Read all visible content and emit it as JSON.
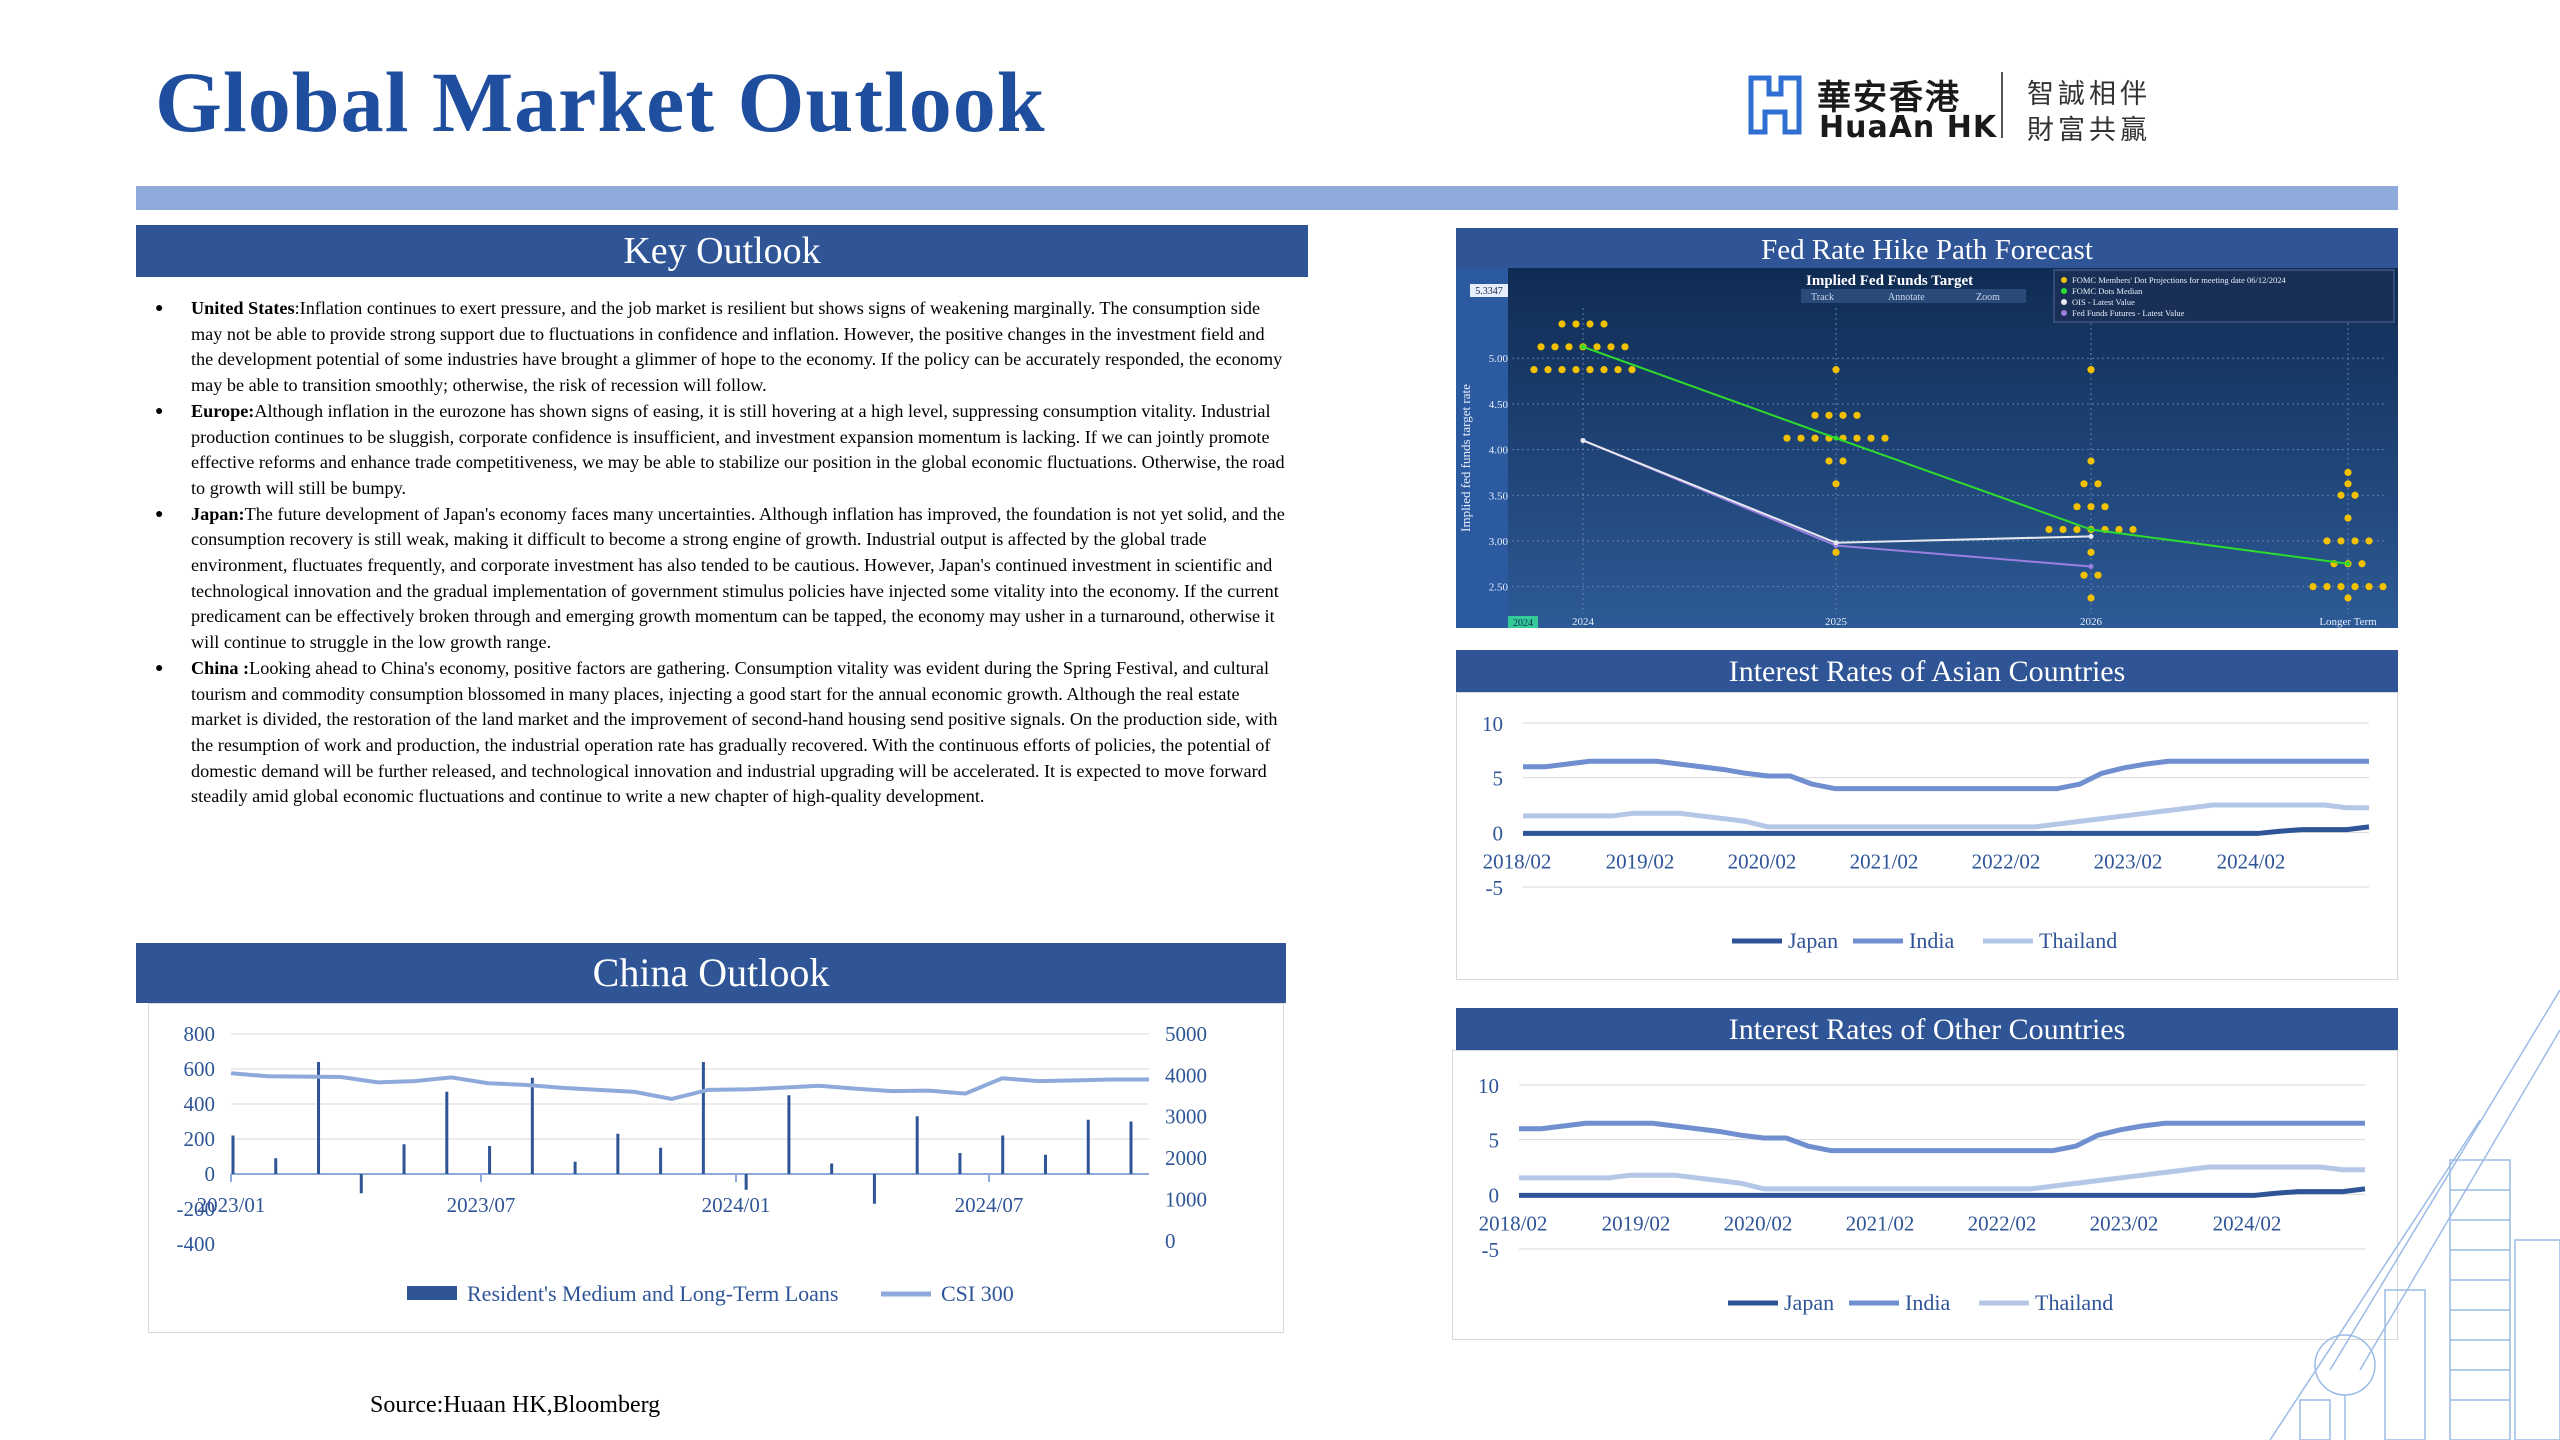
{
  "page": {
    "title": "Global Market Outlook",
    "logo": {
      "cn": "華安香港",
      "en": "HuaAn HK",
      "slogan1": "智誠相伴",
      "slogan2": "財富共贏"
    },
    "source": "Source:Huaan HK,Bloomberg"
  },
  "key_outlook": {
    "header": "Key Outlook",
    "items": [
      {
        "label": "United States",
        "sep": ":",
        "text": "Inflation continues to exert pressure, and the job market is resilient but shows signs of weakening marginally. The consumption side may not be able to provide strong support due to fluctuations in confidence and inflation. However, the positive changes in the investment field and the development potential of some industries have brought a glimmer of hope to the economy. If the policy can be accurately responded, the economy may be able to transition smoothly; otherwise, the risk of recession will follow."
      },
      {
        "label": "Europe:",
        "sep": "",
        "text": "Although inflation in the eurozone has shown signs of easing, it is still hovering at a high level, suppressing consumption vitality. Industrial production continues to be sluggish, corporate confidence is insufficient, and investment expansion momentum is lacking. If we can jointly promote effective reforms and enhance trade competitiveness, we may be able to stabilize our position in the global economic fluctuations. Otherwise, the road to growth will still be bumpy."
      },
      {
        "label": "Japan:",
        "sep": "",
        "text": "The future development of Japan's economy faces many uncertainties. Although inflation has improved, the foundation is not yet solid, and the consumption recovery is still weak, making it difficult to become a strong engine of growth. Industrial output is affected by the global trade environment, fluctuates frequently, and corporate investment has also tended to be cautious. However, Japan's continued investment in scientific and technological innovation and the gradual implementation of government stimulus policies have injected some vitality into the economy. If the current predicament can be effectively broken through and emerging growth momentum can be tapped, the economy may usher in a turnaround, otherwise it will continue to struggle in the low growth range."
      },
      {
        "label": "China :",
        "sep": "",
        "text": "Looking ahead to China's economy, positive factors are gathering. Consumption vitality was evident during the Spring Festival, and cultural tourism and commodity consumption blossomed in many places, injecting a good start for the annual economic growth. Although the real estate market is divided, the restoration of the land market and the improvement of second-hand housing send positive signals. On the production side, with the resumption of work and production, the industrial operation rate has gradually recovered. With the continuous efforts of policies, the potential of domestic demand will be further released, and technological innovation and industrial upgrading will be accelerated. It is expected to move forward steadily amid global economic fluctuations and continue to write a new chapter of high-quality development."
      }
    ]
  },
  "headers": {
    "china": "China Outlook",
    "fed": "Fed Rate Hike Path Forecast",
    "asian": "Interest Rates of Asian Countries",
    "other": "Interest Rates of Other Countries"
  },
  "colors": {
    "brand": "#2f5597",
    "accent_bar": "#8eaadb",
    "title": "#1f4e9f",
    "japan": "#2f5597",
    "india": "#6f8fd0",
    "thailand": "#b4c7e7",
    "csi": "#8eaadb"
  },
  "chart_data": [
    {
      "id": "china",
      "type": "bar",
      "x_ticks": [
        "2023/01",
        "2023/07",
        "2024/01",
        "2024/07"
      ],
      "y_ticks_left": [
        "800",
        "600",
        "400",
        "200",
        "0",
        "-200",
        "-400"
      ],
      "y_ticks_right": [
        "5000",
        "4000",
        "3000",
        "2000",
        "1000",
        "0"
      ],
      "ylim_left": [
        -400,
        800
      ],
      "ylim_right": [
        0,
        5000
      ],
      "series": [
        {
          "name": "Resident's Medium and Long-Term Loans",
          "kind": "bar",
          "axis": "left",
          "values": [
            220,
            90,
            640,
            -110,
            170,
            470,
            160,
            550,
            70,
            230,
            150,
            640,
            -90,
            450,
            60,
            -170,
            330,
            120,
            220,
            110,
            310,
            300
          ]
        },
        {
          "name": "CSI 300",
          "kind": "line",
          "axis": "right",
          "values": [
            4050,
            3980,
            3970,
            3960,
            3830,
            3860,
            3950,
            3810,
            3770,
            3700,
            3650,
            3600,
            3430,
            3650,
            3660,
            3700,
            3750,
            3680,
            3620,
            3630,
            3560,
            3930,
            3860,
            3880,
            3900,
            3900
          ]
        }
      ]
    },
    {
      "id": "fed",
      "type": "scatter",
      "title": "Implied Fed Funds Target",
      "legend": [
        "FOMC Members' Dot Projections for meeting date 06/12/2024",
        "FOMC Dots Median",
        "OIS - Latest Value",
        "Fed Funds Futures - Latest Value"
      ],
      "toolbar": [
        "Track",
        "Annotate",
        "Zoom"
      ],
      "ylabel": "Implied fed funds target rate",
      "x_ticks": [
        "2024",
        "2025",
        "2026",
        "Longer Term"
      ],
      "y_ticks": [
        "5.00",
        "4.50",
        "4.00",
        "3.50",
        "3.00",
        "2.50"
      ],
      "ylim": [
        2.2,
        5.55
      ],
      "badge_top": "5.3347",
      "badge_bottom": "2024",
      "dots": [
        {
          "x": "2024",
          "levels": [
            [
              5.375,
              4
            ],
            [
              5.125,
              7
            ],
            [
              4.875,
              8
            ]
          ]
        },
        {
          "x": "2025",
          "levels": [
            [
              4.875,
              1
            ],
            [
              4.375,
              4
            ],
            [
              4.125,
              8
            ],
            [
              3.875,
              2
            ],
            [
              3.625,
              1
            ],
            [
              2.875,
              1
            ]
          ]
        },
        {
          "x": "2026",
          "levels": [
            [
              4.875,
              1
            ],
            [
              3.875,
              1
            ],
            [
              3.625,
              2
            ],
            [
              3.375,
              3
            ],
            [
              3.125,
              7
            ],
            [
              2.875,
              1
            ],
            [
              2.625,
              2
            ],
            [
              2.375,
              1
            ]
          ]
        },
        {
          "x": "Longer Term",
          "levels": [
            [
              3.75,
              1
            ],
            [
              3.625,
              1
            ],
            [
              3.5,
              2
            ],
            [
              3.25,
              1
            ],
            [
              3.0,
              4
            ],
            [
              2.75,
              3
            ],
            [
              2.5,
              6
            ],
            [
              2.375,
              1
            ]
          ]
        }
      ],
      "series": [
        {
          "name": "FOMC Dots Median",
          "values": [
            5.125,
            4.125,
            3.125,
            2.75
          ]
        },
        {
          "name": "OIS - Latest Value",
          "values": [
            4.1,
            2.98,
            3.05
          ]
        },
        {
          "name": "Fed Funds Futures - Latest Value",
          "values": [
            4.1,
            2.95,
            2.72
          ]
        }
      ]
    },
    {
      "id": "asian",
      "type": "line",
      "x_ticks": [
        "2018/02",
        "2019/02",
        "2020/02",
        "2021/02",
        "2022/02",
        "2023/02",
        "2024/02"
      ],
      "y_ticks": [
        "10",
        "5",
        "0",
        "-5"
      ],
      "ylim": [
        -5,
        10
      ],
      "series": [
        {
          "name": "Japan",
          "values": [
            -0.1,
            -0.1,
            -0.1,
            -0.1,
            -0.1,
            -0.1,
            -0.1,
            -0.1,
            -0.1,
            -0.1,
            -0.1,
            -0.1,
            -0.1,
            -0.1,
            -0.1,
            -0.1,
            -0.1,
            -0.1,
            -0.1,
            -0.1,
            -0.1,
            -0.1,
            -0.1,
            -0.1,
            -0.1,
            -0.1,
            -0.1,
            -0.1,
            -0.1,
            -0.1,
            -0.1,
            -0.1,
            -0.1,
            -0.1,
            0.1,
            0.25,
            0.25,
            0.25,
            0.5
          ]
        },
        {
          "name": "India",
          "values": [
            6.0,
            6.0,
            6.25,
            6.5,
            6.5,
            6.5,
            6.5,
            6.25,
            6.0,
            5.75,
            5.4,
            5.15,
            5.15,
            4.4,
            4.0,
            4.0,
            4.0,
            4.0,
            4.0,
            4.0,
            4.0,
            4.0,
            4.0,
            4.0,
            4.0,
            4.4,
            5.4,
            5.9,
            6.25,
            6.5,
            6.5,
            6.5,
            6.5,
            6.5,
            6.5,
            6.5,
            6.5,
            6.5,
            6.5
          ]
        },
        {
          "name": "Thailand",
          "values": [
            1.5,
            1.5,
            1.5,
            1.5,
            1.5,
            1.75,
            1.75,
            1.75,
            1.5,
            1.25,
            1.0,
            0.5,
            0.5,
            0.5,
            0.5,
            0.5,
            0.5,
            0.5,
            0.5,
            0.5,
            0.5,
            0.5,
            0.5,
            0.5,
            0.75,
            1.0,
            1.25,
            1.5,
            1.75,
            2.0,
            2.25,
            2.5,
            2.5,
            2.5,
            2.5,
            2.5,
            2.5,
            2.25,
            2.25
          ]
        }
      ]
    },
    {
      "id": "other",
      "type": "line",
      "x_ticks": [
        "2018/02",
        "2019/02",
        "2020/02",
        "2021/02",
        "2022/02",
        "2023/02",
        "2024/02"
      ],
      "y_ticks": [
        "10",
        "5",
        "0",
        "-5"
      ],
      "ylim": [
        -5,
        10
      ],
      "series": [
        {
          "name": "Japan",
          "values": [
            -0.1,
            -0.1,
            -0.1,
            -0.1,
            -0.1,
            -0.1,
            -0.1,
            -0.1,
            -0.1,
            -0.1,
            -0.1,
            -0.1,
            -0.1,
            -0.1,
            -0.1,
            -0.1,
            -0.1,
            -0.1,
            -0.1,
            -0.1,
            -0.1,
            -0.1,
            -0.1,
            -0.1,
            -0.1,
            -0.1,
            -0.1,
            -0.1,
            -0.1,
            -0.1,
            -0.1,
            -0.1,
            -0.1,
            -0.1,
            0.1,
            0.25,
            0.25,
            0.25,
            0.5
          ]
        },
        {
          "name": "India",
          "values": [
            6.0,
            6.0,
            6.25,
            6.5,
            6.5,
            6.5,
            6.5,
            6.25,
            6.0,
            5.75,
            5.4,
            5.15,
            5.15,
            4.4,
            4.0,
            4.0,
            4.0,
            4.0,
            4.0,
            4.0,
            4.0,
            4.0,
            4.0,
            4.0,
            4.0,
            4.4,
            5.4,
            5.9,
            6.25,
            6.5,
            6.5,
            6.5,
            6.5,
            6.5,
            6.5,
            6.5,
            6.5,
            6.5,
            6.5
          ]
        },
        {
          "name": "Thailand",
          "values": [
            1.5,
            1.5,
            1.5,
            1.5,
            1.5,
            1.75,
            1.75,
            1.75,
            1.5,
            1.25,
            1.0,
            0.5,
            0.5,
            0.5,
            0.5,
            0.5,
            0.5,
            0.5,
            0.5,
            0.5,
            0.5,
            0.5,
            0.5,
            0.5,
            0.75,
            1.0,
            1.25,
            1.5,
            1.75,
            2.0,
            2.25,
            2.5,
            2.5,
            2.5,
            2.5,
            2.5,
            2.5,
            2.25,
            2.25
          ]
        }
      ]
    }
  ]
}
